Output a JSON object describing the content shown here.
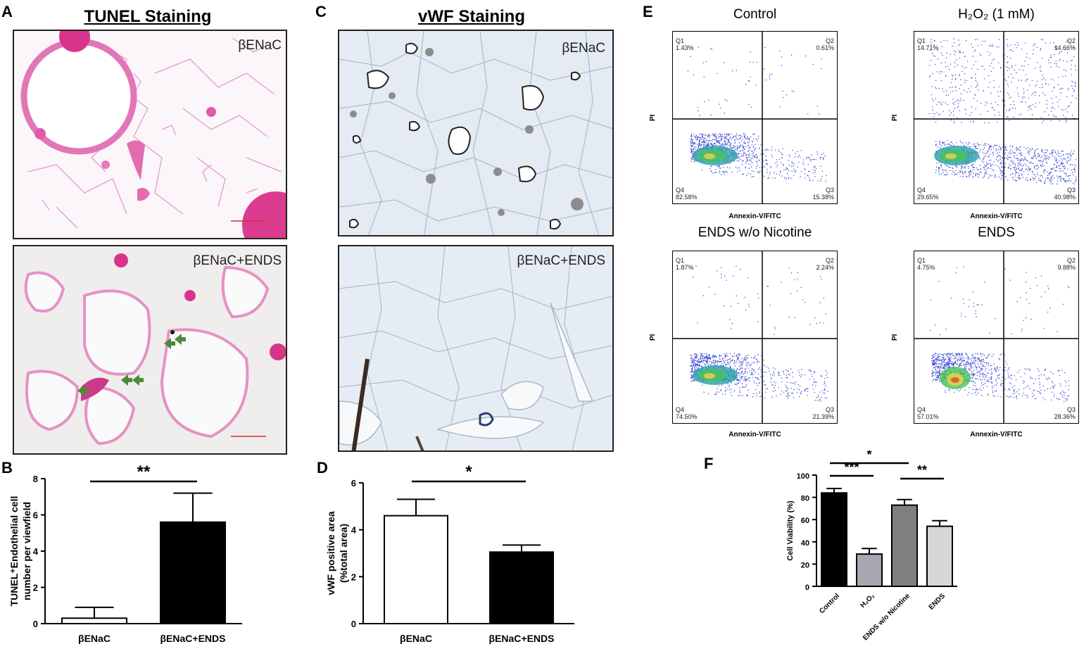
{
  "panels": {
    "A": {
      "letter": "A",
      "title": "TUNEL Staining",
      "top_label": "βENaC",
      "bottom_label": "βENaC+ENDS"
    },
    "C": {
      "letter": "C",
      "title": "vWF Staining",
      "top_label": "βENaC",
      "bottom_label": "βENaC+ENDS"
    },
    "E": {
      "letter": "E",
      "y_label": "PI",
      "x_label": "Annexin-V/FITC",
      "plots": [
        {
          "title": "Control",
          "q1": "1.43%",
          "q2": "0.61%",
          "q3": "15.38%",
          "q4": "82.58%"
        },
        {
          "title": "H₂O₂ (1 mM)",
          "q1": "14.71%",
          "q2": "14.66%",
          "q3": "40.98%",
          "q4": "29.65%"
        },
        {
          "title": "ENDS w/o Nicotine",
          "q1": "1.87%",
          "q2": "2.24%",
          "q3": "21.39%",
          "q4": "74.50%"
        },
        {
          "title": "ENDS",
          "q1": "4.75%",
          "q2": "9.88%",
          "q3": "28.36%",
          "q4": "57.01%"
        }
      ],
      "quadrant_names": {
        "q1": "Q1",
        "q2": "Q2",
        "q3": "Q3",
        "q4": "Q4"
      }
    }
  },
  "chart_data": [
    {
      "letter": "B",
      "type": "bar",
      "ylabel": "TUNEL⁺Endothelial cell number per viewfield",
      "categories": [
        "βENaC",
        "βENaC+ENDS"
      ],
      "values": [
        0.3,
        5.6
      ],
      "errors": [
        0.6,
        1.6
      ],
      "bar_colors": [
        "#ffffff",
        "#000000"
      ],
      "ylim": [
        0,
        8
      ],
      "yticks": [
        "0",
        "2",
        "4",
        "6",
        "8"
      ],
      "significance": "**"
    },
    {
      "letter": "D",
      "type": "bar",
      "ylabel": "vWF positive area (%total area)",
      "categories": [
        "βENaC",
        "βENaC+ENDS"
      ],
      "values": [
        4.6,
        3.05
      ],
      "errors": [
        0.7,
        0.3
      ],
      "bar_colors": [
        "#ffffff",
        "#000000"
      ],
      "ylim": [
        0,
        6
      ],
      "yticks": [
        "0",
        "2",
        "4",
        "6"
      ],
      "significance": "*"
    },
    {
      "letter": "F",
      "type": "bar",
      "ylabel": "Cell Viability (%)",
      "categories": [
        "Control",
        "H₂O₂",
        "ENDS w/o Nicotine",
        "ENDS"
      ],
      "values": [
        84,
        29,
        73,
        54
      ],
      "errors": [
        4,
        5,
        5,
        5
      ],
      "bar_colors": [
        "#000000",
        "#a8a8b0",
        "#808080",
        "#d6d6d6"
      ],
      "ylim": [
        0,
        100
      ],
      "yticks": [
        "0",
        "20",
        "40",
        "60",
        "80",
        "100"
      ],
      "significance": [
        {
          "from": 0,
          "to": 2,
          "label": "*"
        },
        {
          "from": 0,
          "to": 1,
          "label": "***"
        },
        {
          "from": 2,
          "to": 3,
          "label": "**"
        }
      ]
    }
  ]
}
